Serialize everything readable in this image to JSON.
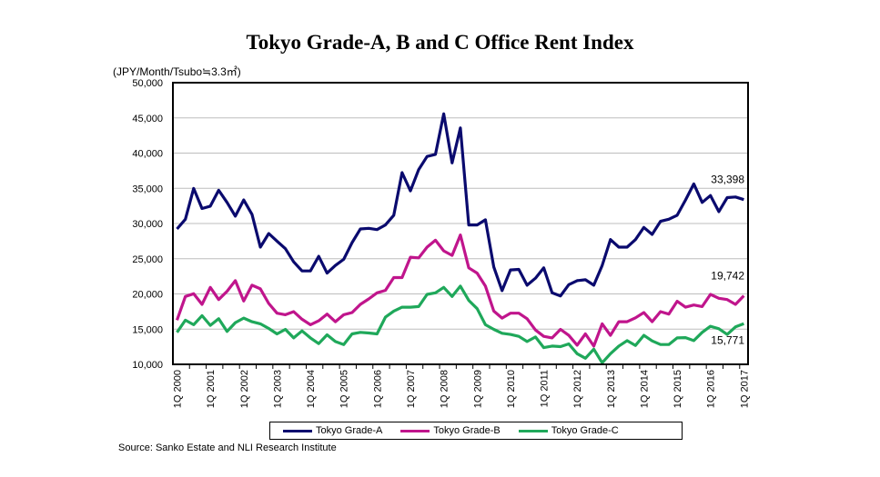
{
  "chart_data": {
    "type": "line",
    "title": "Tokyo Grade-A, B and C Office Rent Index",
    "ylabel": "(JPY/Month/Tsubo≒3.3㎡)",
    "xlabel": "",
    "ylim": [
      10000,
      50000
    ],
    "yticks": [
      "10,000",
      "15,000",
      "20,000",
      "25,000",
      "30,000",
      "35,000",
      "40,000",
      "45,000",
      "50,000"
    ],
    "xtick_labels": [
      "1Q 2000",
      "1Q 2001",
      "1Q 2002",
      "1Q 2003",
      "1Q 2004",
      "1Q 2005",
      "1Q 2006",
      "1Q 2007",
      "1Q 2008",
      "1Q 2009",
      "1Q 2010",
      "1Q 2011",
      "1Q 2012",
      "1Q 2013",
      "1Q 2014",
      "1Q 2015",
      "1Q 2016",
      "1Q 2017"
    ],
    "grid": true,
    "legend_position": "bottom",
    "series": [
      {
        "name": "Tokyo Grade-A",
        "color": "#0a0a6e",
        "end_label": "33,398",
        "values": [
          29230,
          30610,
          34980,
          32130,
          32470,
          34720,
          33000,
          31050,
          33340,
          31300,
          26640,
          28580,
          27500,
          26420,
          24560,
          23270,
          23270,
          25340,
          22960,
          24040,
          24910,
          27290,
          29230,
          29320,
          29140,
          29790,
          31180,
          37230,
          34630,
          37660,
          39520,
          39820,
          45570,
          38610,
          43580,
          29790,
          29790,
          30530,
          23830,
          20460,
          23400,
          23480,
          21240,
          22230,
          23700,
          20160,
          19720,
          21320,
          21880,
          22010,
          21240,
          24040,
          27720,
          26640,
          26640,
          27720,
          29450,
          28450,
          30310,
          30610,
          31180,
          33340,
          35630,
          33000,
          33980,
          31690,
          33680,
          33770,
          33398
        ]
      },
      {
        "name": "Tokyo Grade-B",
        "color": "#c0158c",
        "end_label": "19,742",
        "values": [
          16270,
          19640,
          20030,
          18510,
          20930,
          19200,
          20370,
          21880,
          18990,
          21240,
          20720,
          18640,
          17260,
          17040,
          17480,
          16400,
          15620,
          16180,
          17130,
          16050,
          17040,
          17350,
          18510,
          19290,
          20160,
          20500,
          22320,
          22320,
          25210,
          25120,
          26640,
          27630,
          26120,
          25470,
          28370,
          23700,
          22960,
          21110,
          17560,
          16570,
          17260,
          17260,
          16480,
          14880,
          13980,
          13760,
          14970,
          14110,
          12720,
          14320,
          12590,
          15750,
          14110,
          16050,
          16050,
          16610,
          17350,
          16050,
          17480,
          17130,
          18950,
          18120,
          18430,
          18210,
          19940,
          19380,
          19200,
          18510,
          19742
        ]
      },
      {
        "name": "Tokyo Grade-C",
        "color": "#1fa85a",
        "end_label": "15,771",
        "values": [
          14540,
          16270,
          15620,
          16910,
          15530,
          16480,
          14670,
          15920,
          16570,
          16050,
          15750,
          15100,
          14320,
          14970,
          13760,
          14750,
          13760,
          12940,
          14190,
          13240,
          12810,
          14320,
          14540,
          14450,
          14320,
          16700,
          17560,
          18120,
          18120,
          18210,
          19940,
          20160,
          20930,
          19640,
          21110,
          19080,
          17910,
          15620,
          14970,
          14410,
          14240,
          13980,
          13240,
          13890,
          12380,
          12590,
          12510,
          12900,
          11510,
          10860,
          12160,
          10220,
          11510,
          12590,
          13370,
          12680,
          14110,
          13330,
          12810,
          12810,
          13760,
          13800,
          13370,
          14540,
          15400,
          15060,
          14240,
          15320,
          15771
        ]
      }
    ],
    "source": "Source: Sanko Estate and  NLI Research Institute"
  }
}
